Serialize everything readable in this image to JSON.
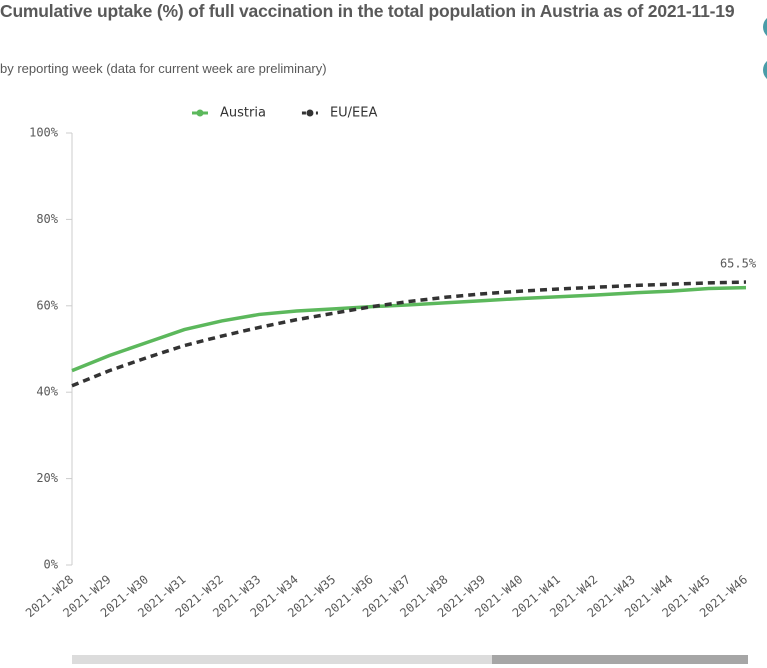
{
  "chart_data": {
    "type": "line",
    "title": "Cumulative uptake (%) of full vaccination in the total population in Austria as of 2021-11-19",
    "subtitle": "by reporting week (data for current week are preliminary)",
    "categories": [
      "2021-W28",
      "2021-W29",
      "2021-W30",
      "2021-W31",
      "2021-W32",
      "2021-W33",
      "2021-W34",
      "2021-W35",
      "2021-W36",
      "2021-W37",
      "2021-W38",
      "2021-W39",
      "2021-W40",
      "2021-W41",
      "2021-W42",
      "2021-W43",
      "2021-W44",
      "2021-W45",
      "2021-W46"
    ],
    "series": [
      {
        "name": "Austria",
        "color": "#5cb85c",
        "dashed": false,
        "values": [
          45,
          48.5,
          51.5,
          54.5,
          56.5,
          58,
          58.8,
          59.3,
          59.8,
          60.2,
          60.7,
          61.2,
          61.7,
          62.1,
          62.5,
          63,
          63.4,
          64,
          64.2
        ]
      },
      {
        "name": "EU/EEA",
        "color": "#333333",
        "dashed": true,
        "values": [
          41.5,
          45,
          48,
          50.8,
          53,
          55,
          56.8,
          58.3,
          59.8,
          61,
          62,
          62.8,
          63.4,
          63.9,
          64.3,
          64.7,
          65,
          65.3,
          65.5
        ],
        "value_labels": [
          null,
          null,
          null,
          null,
          null,
          null,
          null,
          null,
          null,
          null,
          null,
          null,
          null,
          null,
          null,
          null,
          null,
          null,
          "65.5%"
        ]
      }
    ],
    "ylim": [
      0,
      100
    ],
    "yticks": [
      {
        "value": 0,
        "label": "0%"
      },
      {
        "value": 20,
        "label": "20%"
      },
      {
        "value": 40,
        "label": "40%"
      },
      {
        "value": 60,
        "label": "60%"
      },
      {
        "value": 80,
        "label": "80%"
      },
      {
        "value": 100,
        "label": "100%"
      }
    ],
    "grid": false,
    "legend": "top"
  }
}
